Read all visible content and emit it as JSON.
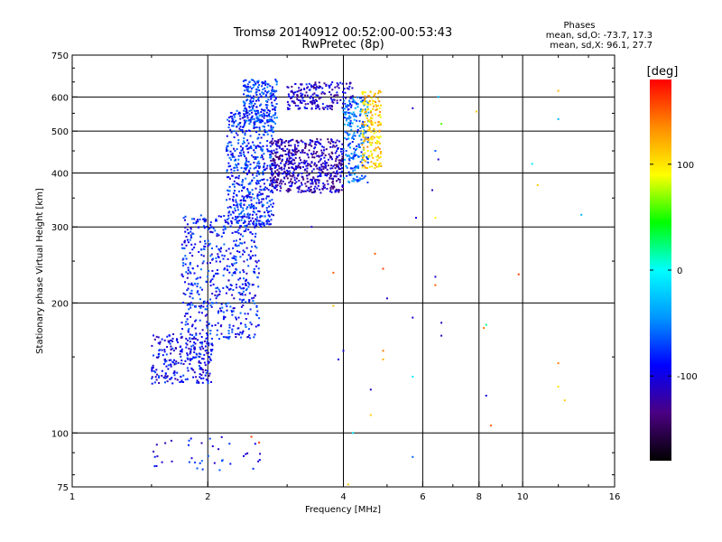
{
  "chart_data": {
    "type": "scatter",
    "title_line1": "Tromsø 20140912 00:52:00-00:53:43",
    "title_line2": "RwPretec (8p)",
    "info": {
      "heading": "Phases",
      "line1": "mean, sd,O: -73.7, 17.3",
      "line2": "mean, sd,X:  96.1, 27.7"
    },
    "xlabel": "Frequency [MHz]",
    "ylabel": "Stationary phase Virtual Height [km]",
    "xscale": "log",
    "yscale": "log",
    "xlim": [
      1,
      16
    ],
    "ylim": [
      75,
      750
    ],
    "xticks": [
      1,
      2,
      4,
      6,
      8,
      10,
      16
    ],
    "yticks": [
      75,
      100,
      200,
      300,
      400,
      500,
      600,
      750
    ],
    "x_gridlines": [
      2,
      4,
      6,
      8,
      10
    ],
    "y_gridlines": [
      100,
      200,
      300,
      400,
      500,
      600
    ],
    "grid": true,
    "colorbar": {
      "label": "[deg]",
      "range": [
        -180,
        180
      ],
      "ticks": [
        100,
        0,
        -100
      ],
      "colors": [
        "#000000",
        "#4b0082",
        "#0000ff",
        "#0096ff",
        "#00ffff",
        "#00ff00",
        "#ffff00",
        "#ff8c00",
        "#ff0000"
      ]
    },
    "clusters": [
      {
        "x": [
          1.5,
          2.05
        ],
        "y": [
          130,
          170
        ],
        "n": 260,
        "phase": -95
      },
      {
        "x": [
          1.75,
          2.6
        ],
        "y": [
          165,
          320
        ],
        "n": 560,
        "phase": -85
      },
      {
        "x": [
          2.2,
          2.8
        ],
        "y": [
          300,
          560
        ],
        "n": 560,
        "phase": -80
      },
      {
        "x": [
          2.4,
          2.85
        ],
        "y": [
          520,
          660
        ],
        "n": 220,
        "phase": -75
      },
      {
        "x": [
          2.75,
          4.0
        ],
        "y": [
          360,
          480
        ],
        "n": 600,
        "phase": -115
      },
      {
        "x": [
          3.0,
          4.2
        ],
        "y": [
          560,
          650
        ],
        "n": 200,
        "phase": -105
      },
      {
        "x": [
          4.0,
          4.55
        ],
        "y": [
          380,
          600
        ],
        "n": 220,
        "phase": -60
      },
      {
        "x": [
          4.4,
          4.85
        ],
        "y": [
          410,
          620
        ],
        "n": 180,
        "phase": 110
      },
      {
        "x": [
          1.5,
          2.7
        ],
        "y": [
          82,
          98
        ],
        "n": 40,
        "phase": -90
      }
    ],
    "scattered_points": [
      {
        "x": 5.7,
        "y": 565,
        "phase": -110
      },
      {
        "x": 5.8,
        "y": 315,
        "phase": -100
      },
      {
        "x": 5.7,
        "y": 185,
        "phase": -110
      },
      {
        "x": 5.7,
        "y": 135,
        "phase": -10
      },
      {
        "x": 5.7,
        "y": 88,
        "phase": -60
      },
      {
        "x": 6.5,
        "y": 600,
        "phase": -30
      },
      {
        "x": 6.6,
        "y": 520,
        "phase": 60
      },
      {
        "x": 6.4,
        "y": 450,
        "phase": -60
      },
      {
        "x": 6.5,
        "y": 430,
        "phase": -110
      },
      {
        "x": 6.3,
        "y": 365,
        "phase": -115
      },
      {
        "x": 6.4,
        "y": 230,
        "phase": -110
      },
      {
        "x": 6.4,
        "y": 220,
        "phase": 150
      },
      {
        "x": 6.6,
        "y": 180,
        "phase": -115
      },
      {
        "x": 6.6,
        "y": 168,
        "phase": -115
      },
      {
        "x": 6.4,
        "y": 315,
        "phase": 90
      },
      {
        "x": 4.7,
        "y": 260,
        "phase": 150
      },
      {
        "x": 4.9,
        "y": 240,
        "phase": 160
      },
      {
        "x": 5.0,
        "y": 205,
        "phase": -110
      },
      {
        "x": 4.0,
        "y": 155,
        "phase": -100
      },
      {
        "x": 3.9,
        "y": 148,
        "phase": -100
      },
      {
        "x": 4.9,
        "y": 155,
        "phase": 140
      },
      {
        "x": 4.9,
        "y": 148,
        "phase": 120
      },
      {
        "x": 4.6,
        "y": 126,
        "phase": -110
      },
      {
        "x": 4.6,
        "y": 110,
        "phase": 110
      },
      {
        "x": 4.2,
        "y": 100,
        "phase": -10
      },
      {
        "x": 4.1,
        "y": 76,
        "phase": 110
      },
      {
        "x": 3.8,
        "y": 235,
        "phase": 150
      },
      {
        "x": 3.8,
        "y": 197,
        "phase": 120
      },
      {
        "x": 3.4,
        "y": 300,
        "phase": -110
      },
      {
        "x": 8.3,
        "y": 178,
        "phase": 20
      },
      {
        "x": 8.2,
        "y": 175,
        "phase": 140
      },
      {
        "x": 8.3,
        "y": 122,
        "phase": -100
      },
      {
        "x": 8.5,
        "y": 104,
        "phase": 150
      },
      {
        "x": 9.8,
        "y": 233,
        "phase": 160
      },
      {
        "x": 10.5,
        "y": 420,
        "phase": -10
      },
      {
        "x": 10.8,
        "y": 375,
        "phase": 110
      },
      {
        "x": 12.0,
        "y": 620,
        "phase": 120
      },
      {
        "x": 12.0,
        "y": 533,
        "phase": -30
      },
      {
        "x": 12.0,
        "y": 145,
        "phase": 140
      },
      {
        "x": 12.0,
        "y": 128,
        "phase": 100
      },
      {
        "x": 12.4,
        "y": 119,
        "phase": 110
      },
      {
        "x": 13.5,
        "y": 320,
        "phase": -30
      },
      {
        "x": 7.9,
        "y": 555,
        "phase": 110
      },
      {
        "x": 2.5,
        "y": 98,
        "phase": 160
      },
      {
        "x": 2.6,
        "y": 95,
        "phase": 160
      }
    ]
  }
}
